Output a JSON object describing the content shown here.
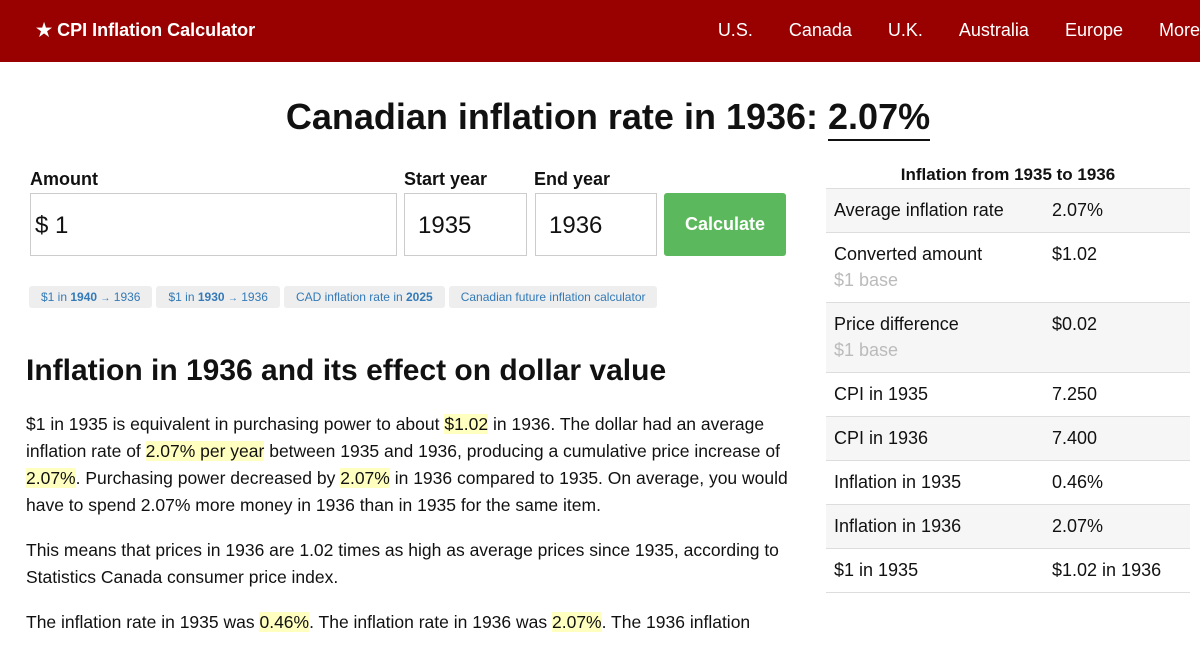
{
  "nav": {
    "brand": "★ CPI Inflation Calculator",
    "links": [
      "U.S.",
      "Canada",
      "U.K.",
      "Australia",
      "Europe",
      "More"
    ]
  },
  "heading": {
    "text": "Canadian inflation rate in 1936:",
    "rate": "2.07%"
  },
  "form": {
    "amount_label": "Amount",
    "currency": "$",
    "amount": "1",
    "start_label": "Start year",
    "start": "1935",
    "end_label": "End year",
    "end": "1936",
    "button": "Calculate"
  },
  "quick_links": [
    [
      {
        "text": "$1 in"
      },
      {
        "text": "1940",
        "bold": true
      },
      {
        "text": "→",
        "small": true
      },
      {
        "text": "1936"
      }
    ],
    [
      {
        "text": "$1 in"
      },
      {
        "text": "1930",
        "bold": true
      },
      {
        "text": "→",
        "small": true
      },
      {
        "text": "1936"
      }
    ],
    [
      {
        "text": "CAD inflation rate in"
      },
      {
        "text": "2025",
        "bold": true
      }
    ],
    [
      {
        "text": "Canadian future inflation calculator"
      }
    ]
  ],
  "article": {
    "title": "Inflation in 1936 and its effect on dollar value",
    "paragraphs": [
      [
        {
          "text": "$1 in 1935 is equivalent in purchasing power to about "
        },
        {
          "text": "$1.02",
          "highlight": true
        },
        {
          "text": " in 1936. The dollar had an average inflation rate of "
        },
        {
          "text": "2.07% per year",
          "highlight": true
        },
        {
          "text": " between 1935 and 1936, producing a cumulative price increase of "
        },
        {
          "text": "2.07%",
          "highlight": true
        },
        {
          "text": ". Purchasing power decreased by "
        },
        {
          "text": "2.07%",
          "highlight": true
        },
        {
          "text": " in 1936 compared to 1935. On average, you would have to spend 2.07% more money in 1936 than in 1935 for the same item."
        }
      ],
      [
        {
          "text": "This means that prices in 1936 are 1.02 times as high as average prices since 1935, according to Statistics Canada consumer price index."
        }
      ],
      [
        {
          "text": "The inflation rate in 1935 was "
        },
        {
          "text": "0.46%",
          "highlight": true
        },
        {
          "text": ". The inflation rate in 1936 was "
        },
        {
          "text": "2.07%",
          "highlight": true
        },
        {
          "text": ". The 1936 inflation"
        }
      ]
    ]
  },
  "summary": {
    "caption": "Inflation from 1935 to 1936",
    "rows": [
      {
        "label": "Average inflation rate",
        "value": "2.07%"
      },
      {
        "label": "Converted amount",
        "note": "$1 base",
        "value": "$1.02"
      },
      {
        "label": "Price difference",
        "note": "$1 base",
        "value": "$0.02"
      },
      {
        "label": "CPI in 1935",
        "value": "7.250"
      },
      {
        "label": "CPI in 1936",
        "value": "7.400"
      },
      {
        "label": "Inflation in 1935",
        "value": "0.46%"
      },
      {
        "label": "Inflation in 1936",
        "value": "2.07%"
      },
      {
        "label": "$1 in 1935",
        "value": "$1.02 in 1936"
      }
    ]
  }
}
